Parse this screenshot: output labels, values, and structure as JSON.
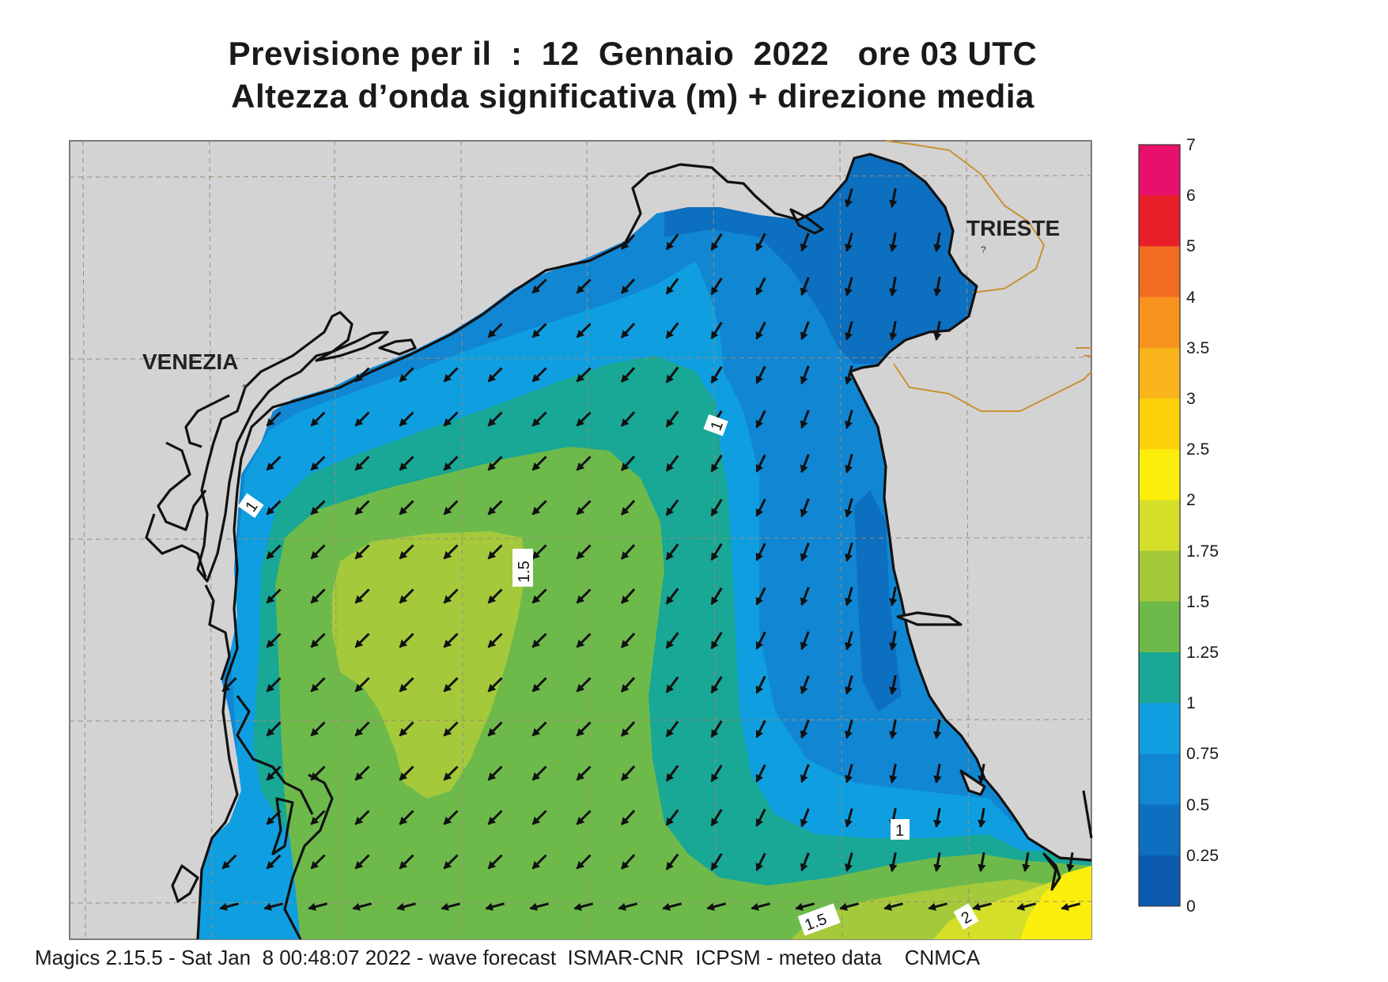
{
  "title": {
    "line1": "Previsione per il  :  12  Gennaio  2022   ore 03 UTC",
    "line2": "Altezza d’onda significativa (m) + direzione media"
  },
  "cities": {
    "venezia": "VENEZIA",
    "trieste": "TRIESTE"
  },
  "contour_labels": {
    "north_1": "1",
    "west_1": "1",
    "center_1_5": "1.5",
    "south_1": "1",
    "south_1_5": "1.5",
    "south_2": "2"
  },
  "legend": {
    "ticks": [
      "7",
      "6",
      "5",
      "4",
      "3.5",
      "3",
      "2.5",
      "2",
      "1.75",
      "1.5",
      "1.25",
      "1",
      "0.75",
      "0.5",
      "0.25",
      "0"
    ],
    "colors": [
      "#e8106a",
      "#e81e28",
      "#f26b22",
      "#f7921e",
      "#f8b41a",
      "#fdd20a",
      "#fcee0b",
      "#d5df29",
      "#a4c93b",
      "#6dba4b",
      "#19a796",
      "#0f9fe1",
      "#1187d3",
      "#0d6fc0",
      "#0b5ab0"
    ]
  },
  "footer": "Magics 2.15.5 - Sat Jan  8 00:48:07 2022 - wave forecast  ISMAR-CNR  ICPSM - meteo data    CNMCA",
  "colors": {
    "land": "#d3d3d4",
    "grid": "#a08a74",
    "coast": "#111111",
    "border": "#c89232"
  }
}
